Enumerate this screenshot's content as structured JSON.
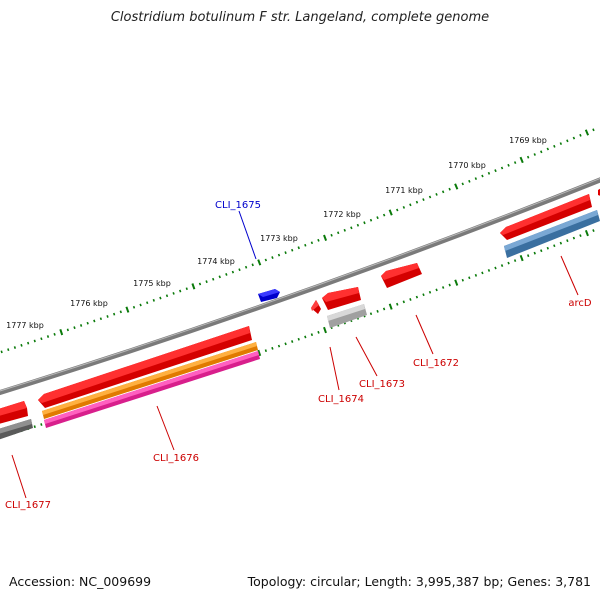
{
  "title": "Clostridium botulinum F str. Langeland, complete genome",
  "footer": {
    "accession": "Accession: NC_009699",
    "summary": "Topology: circular; Length: 3,995,387 bp; Genes: 3,781"
  },
  "ruler_labels": [
    "1769 kbp",
    "1770 kbp",
    "1771 kbp",
    "1772 kbp",
    "1773 kbp",
    "1774 kbp",
    "1775 kbp",
    "1776 kbp",
    "1777 kbp"
  ],
  "gene_labels": {
    "cli_1675": "CLI_1675",
    "arcd": "arcD",
    "cli_1672": "CLI_1672",
    "cli_1673": "CLI_1673",
    "cli_1674": "CLI_1674",
    "cli_1676": "CLI_1676",
    "cli_1677": "CLI_1677"
  },
  "colors": {
    "backbone": "#7a7a7a",
    "gene_red": "#e00000",
    "gene_blue": "#0000dd",
    "cds_orange": "#f08a00",
    "cds_pink": "#e8249a",
    "steel_blue": "#3f78ad",
    "gray_dark": "#606060",
    "gray_light": "#b0b0b0",
    "ruler_green": "#0a7a0a",
    "label_red": "#cc0000",
    "label_blue": "#0000cc"
  }
}
